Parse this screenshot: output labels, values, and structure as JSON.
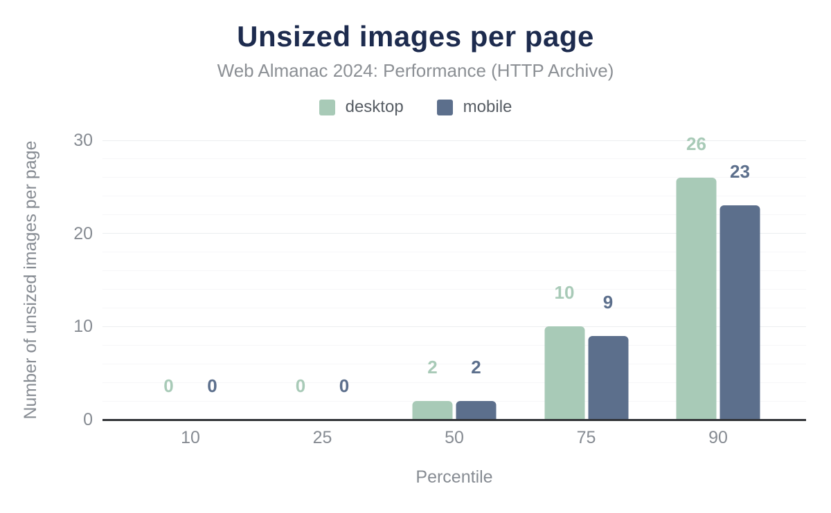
{
  "chart_data": {
    "type": "bar",
    "title": "Unsized images per page",
    "subtitle": "Web Almanac 2024: Performance (HTTP Archive)",
    "xlabel": "Percentile",
    "ylabel": "Number of unsized images per page",
    "categories": [
      "10",
      "25",
      "50",
      "75",
      "90"
    ],
    "series": [
      {
        "name": "desktop",
        "color": "#a8cab7",
        "values": [
          0,
          0,
          2,
          10,
          26
        ]
      },
      {
        "name": "mobile",
        "color": "#5c6f8c",
        "values": [
          0,
          0,
          2,
          9,
          23
        ]
      }
    ],
    "ylim": [
      0,
      30
    ],
    "y_ticks": [
      0,
      10,
      20,
      30
    ],
    "minor_tick_step": 2,
    "grid": true,
    "legend_position": "top",
    "value_labels": true
  },
  "colors": {
    "title": "#1d2b4e",
    "subtitle": "#8b8f94",
    "axis_text": "#868b92",
    "axis_line": "#303236",
    "major_grid": "#ebedef",
    "minor_grid": "#f6f7f8",
    "background": "#ffffff"
  }
}
